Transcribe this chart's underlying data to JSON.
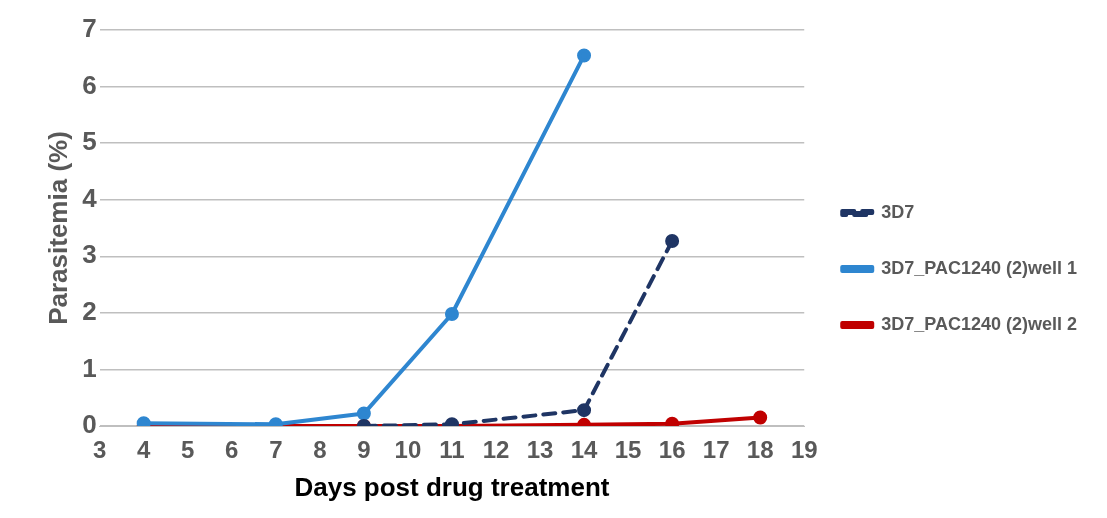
{
  "chart_data": {
    "type": "line",
    "xlabel": "Days post drug treatment",
    "ylabel": "Parasitemia (%)",
    "xlim": [
      3,
      19
    ],
    "xticks": [
      3,
      4,
      5,
      6,
      7,
      8,
      9,
      10,
      11,
      12,
      13,
      14,
      15,
      16,
      17,
      18,
      19
    ],
    "ylim": [
      0,
      7
    ],
    "yticks": [
      0,
      1,
      2,
      3,
      4,
      5,
      6,
      7
    ],
    "grid": "y",
    "legend": "right",
    "marker": "circle",
    "series": [
      {
        "name": "3D7",
        "color": "#1f3564",
        "line_style": "dashed",
        "x": [
          9,
          11,
          14,
          16
        ],
        "values": [
          0,
          0.03,
          0.28,
          3.27
        ]
      },
      {
        "name": "3D7_PAC1240 (2)well 1",
        "color": "#2e86d0",
        "line_style": "solid",
        "x": [
          4,
          7,
          9,
          11,
          14
        ],
        "values": [
          0.05,
          0.03,
          0.22,
          1.98,
          6.55
        ]
      },
      {
        "name": "3D7_PAC1240 (2)well 2",
        "color": "#c00000",
        "line_style": "solid",
        "x": [
          4,
          7,
          9,
          11,
          14,
          16,
          18
        ],
        "values": [
          0,
          0,
          0,
          0,
          0.02,
          0.04,
          0.15
        ]
      }
    ]
  }
}
